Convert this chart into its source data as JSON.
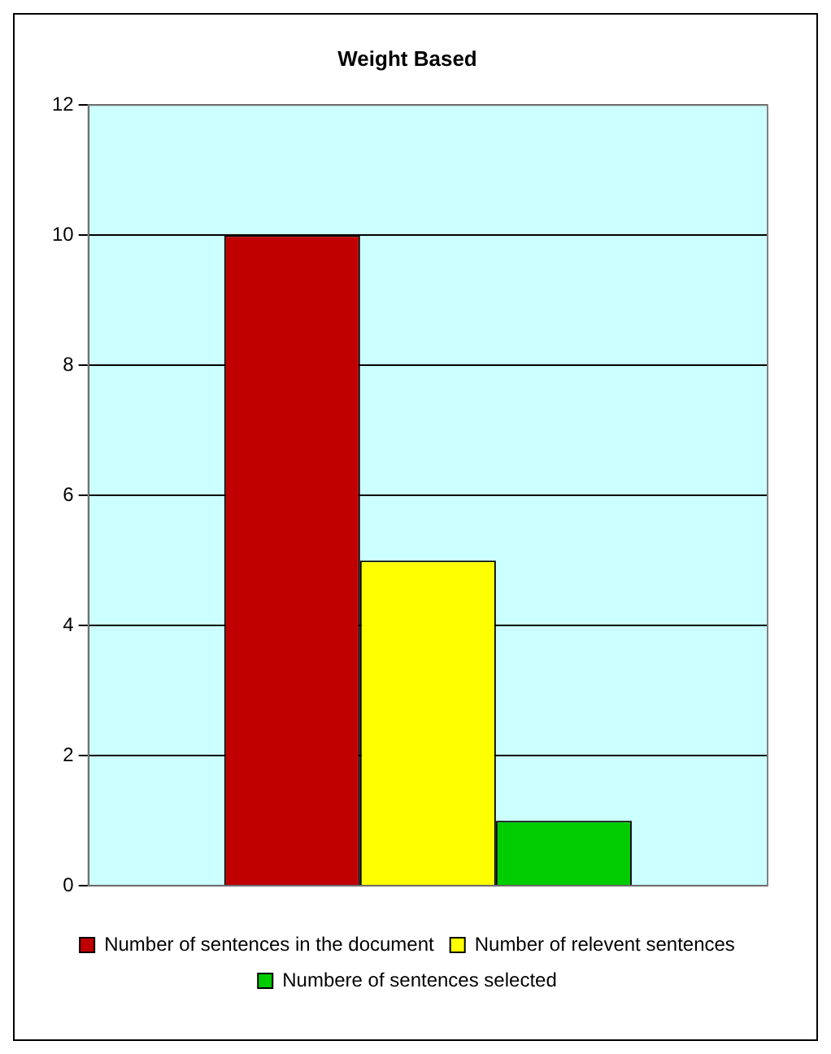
{
  "chart_data": {
    "type": "bar",
    "title": "Weight Based",
    "categories": [
      null
    ],
    "series": [
      {
        "name": "Number of sentences in the document",
        "color": "#c00000",
        "values": [
          10
        ]
      },
      {
        "name": "Number of relevent sentences",
        "color": "#ffff00",
        "values": [
          5
        ]
      },
      {
        "name": "Numbere of sentences selected",
        "color": "#00cc00",
        "values": [
          1
        ]
      }
    ],
    "ylim": [
      0,
      12
    ],
    "yticks": [
      0,
      2,
      4,
      6,
      8,
      10,
      12
    ],
    "grid": "y",
    "legend": "bottom"
  }
}
